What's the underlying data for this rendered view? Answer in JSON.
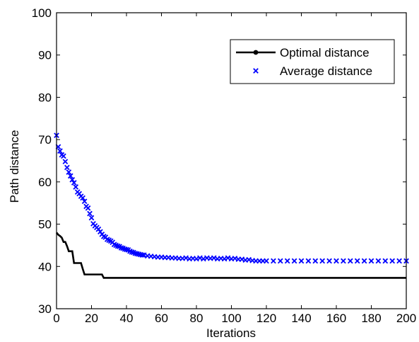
{
  "chart_data": {
    "type": "line",
    "title": "",
    "xlabel": "Iterations",
    "ylabel": "Path distance",
    "xlim": [
      0,
      200
    ],
    "ylim": [
      30,
      100
    ],
    "xticks": [
      0,
      20,
      40,
      60,
      80,
      100,
      120,
      140,
      160,
      180,
      200
    ],
    "yticks": [
      30,
      40,
      50,
      60,
      70,
      80,
      90,
      100
    ],
    "grid": false,
    "legend_position": "top-right",
    "series": [
      {
        "name": "Optimal distance",
        "style": "line",
        "color": "#000000",
        "x": [
          0,
          1,
          2,
          3,
          4,
          5,
          6,
          7,
          8,
          9,
          10,
          11,
          12,
          13,
          14,
          15,
          16,
          17,
          18,
          19,
          20,
          21,
          22,
          23,
          24,
          25,
          26,
          27,
          28,
          29,
          30,
          40,
          60,
          80,
          100,
          120,
          140,
          160,
          180,
          200
        ],
        "y": [
          48,
          47.5,
          47.2,
          46.8,
          45.8,
          45.8,
          44.8,
          43.6,
          43.6,
          43.6,
          40.8,
          40.8,
          40.8,
          40.8,
          40.8,
          39.4,
          38.1,
          38.1,
          38.1,
          38.1,
          38.1,
          38.1,
          38.1,
          38.1,
          38.1,
          38.1,
          38.1,
          37.3,
          37.3,
          37.3,
          37.3,
          37.3,
          37.3,
          37.3,
          37.3,
          37.3,
          37.3,
          37.3,
          37.3,
          37.3
        ]
      },
      {
        "name": "Average distance",
        "style": "markers",
        "marker": "x",
        "color": "#0000ff",
        "x": [
          0,
          1,
          2,
          3,
          4,
          5,
          6,
          7,
          8,
          9,
          10,
          11,
          12,
          13,
          14,
          15,
          16,
          17,
          18,
          19,
          20,
          21,
          22,
          23,
          24,
          25,
          26,
          27,
          28,
          29,
          30,
          31,
          32,
          33,
          34,
          35,
          36,
          37,
          38,
          39,
          40,
          41,
          42,
          43,
          44,
          45,
          46,
          47,
          48,
          49,
          50,
          52,
          54,
          56,
          58,
          60,
          62,
          64,
          66,
          68,
          70,
          72,
          74,
          76,
          78,
          80,
          82,
          84,
          86,
          88,
          90,
          92,
          94,
          96,
          98,
          100,
          102,
          104,
          106,
          108,
          110,
          112,
          114,
          116,
          118,
          120,
          124,
          128,
          132,
          136,
          140,
          144,
          148,
          152,
          156,
          160,
          164,
          168,
          172,
          176,
          180,
          184,
          188,
          192,
          196,
          200
        ],
        "y": [
          71,
          68.3,
          67.3,
          66.4,
          66.1,
          64.8,
          63.4,
          62.3,
          61.4,
          60.5,
          59.8,
          58.8,
          57.6,
          57.2,
          56.6,
          56.2,
          55.4,
          54.2,
          53.8,
          52.5,
          51.5,
          50.1,
          49.6,
          49.2,
          48.8,
          48.2,
          47.6,
          47.1,
          46.9,
          46.4,
          46.2,
          46.0,
          45.7,
          45.2,
          45.0,
          44.8,
          44.7,
          44.4,
          44.3,
          44.1,
          44.0,
          43.9,
          43.6,
          43.4,
          43.3,
          43.1,
          43.0,
          42.9,
          42.8,
          42.7,
          42.7,
          42.5,
          42.4,
          42.3,
          42.2,
          42.2,
          42.1,
          42.1,
          42.0,
          42.0,
          41.9,
          41.9,
          42.0,
          41.8,
          41.9,
          41.8,
          42.0,
          41.8,
          42.0,
          41.9,
          42.0,
          41.8,
          41.9,
          41.8,
          42.0,
          41.8,
          41.9,
          41.7,
          41.7,
          41.5,
          41.6,
          41.4,
          41.3,
          41.3,
          41.3,
          41.3,
          41.3,
          41.3,
          41.3,
          41.3,
          41.3,
          41.3,
          41.3,
          41.3,
          41.3,
          41.3,
          41.3,
          41.3,
          41.3,
          41.3,
          41.3,
          41.3,
          41.3,
          41.3,
          41.3,
          41.3
        ]
      }
    ]
  }
}
